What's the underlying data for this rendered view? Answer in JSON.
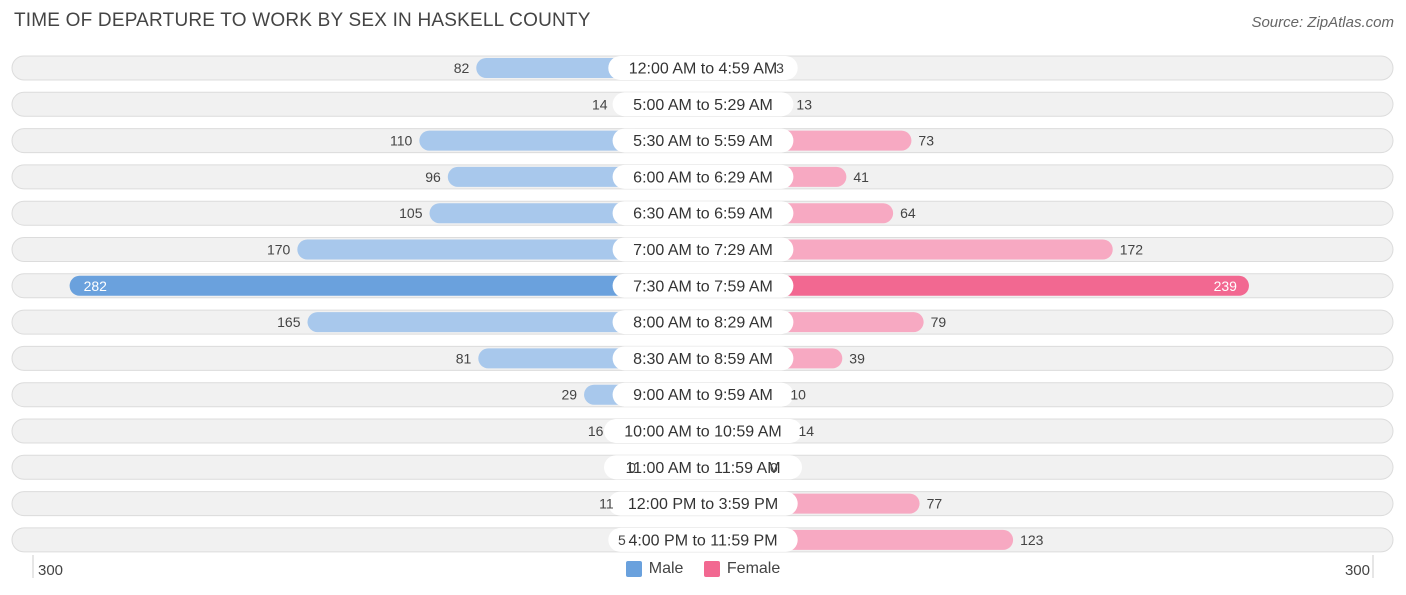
{
  "title": "TIME OF DEPARTURE TO WORK BY SEX IN HASKELL COUNTY",
  "source": "Source: ZipAtlas.com",
  "colors": {
    "male": "#6aa1dd",
    "male_light": "#a8c8ec",
    "female": "#f26891",
    "female_light": "#f7a9c2",
    "row_bg": "#f1f1f1",
    "row_border": "#dcdcdc"
  },
  "chart_data": {
    "type": "bar",
    "orientation": "horizontal-diverging",
    "categories": [
      "12:00 AM to 4:59 AM",
      "5:00 AM to 5:29 AM",
      "5:30 AM to 5:59 AM",
      "6:00 AM to 6:29 AM",
      "6:30 AM to 6:59 AM",
      "7:00 AM to 7:29 AM",
      "7:30 AM to 7:59 AM",
      "8:00 AM to 8:29 AM",
      "8:30 AM to 8:59 AM",
      "9:00 AM to 9:59 AM",
      "10:00 AM to 10:59 AM",
      "11:00 AM to 11:59 AM",
      "12:00 PM to 3:59 PM",
      "4:00 PM to 11:59 PM"
    ],
    "series": [
      {
        "name": "Male",
        "values": [
          82,
          14,
          110,
          96,
          105,
          170,
          282,
          165,
          81,
          29,
          16,
          0,
          11,
          5
        ]
      },
      {
        "name": "Female",
        "values": [
          3,
          13,
          73,
          41,
          64,
          172,
          239,
          79,
          39,
          10,
          14,
          0,
          77,
          123
        ]
      }
    ],
    "xlim": [
      -300,
      300
    ],
    "axis_labels": {
      "left": "300",
      "right": "300"
    },
    "legend_position": "bottom-center"
  }
}
